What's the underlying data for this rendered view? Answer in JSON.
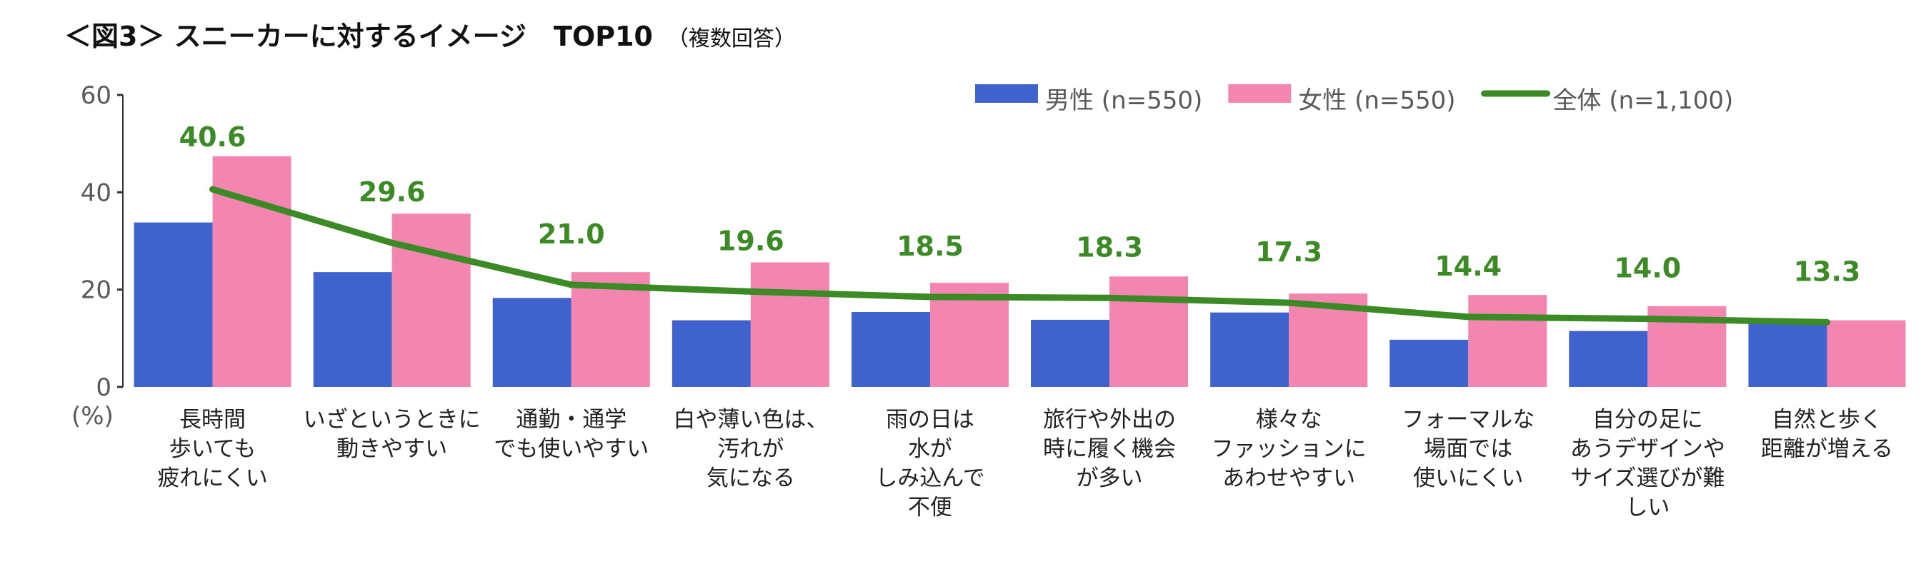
{
  "chart_data": {
    "type": "bar",
    "title": "＜図3＞ スニーカーに対するイメージ　TOP10",
    "subtitle": "（複数回答）",
    "ylabel": "(%)",
    "ylim": [
      0,
      60
    ],
    "yticks": [
      0,
      20,
      40,
      60
    ],
    "grid": false,
    "legend_position": "top-right",
    "categories": [
      [
        "長時間",
        "歩いても",
        "疲れにくい"
      ],
      [
        "いざというときに",
        "動きやすい"
      ],
      [
        "通勤・通学",
        "でも使いやすい"
      ],
      [
        "白や薄い色は、",
        "汚れが",
        "気になる"
      ],
      [
        "雨の日は",
        "水が",
        "しみ込んで",
        "不便"
      ],
      [
        "旅行や外出の",
        "時に履く機会",
        "が多い"
      ],
      [
        "様々な",
        "ファッションに",
        "あわせやすい"
      ],
      [
        "フォーマルな",
        "場面では",
        "使いにくい"
      ],
      [
        "自分の足に",
        "あうデザインや",
        "サイズ選びが難",
        "しい"
      ],
      [
        "自然と歩く",
        "距離が増える"
      ]
    ],
    "series": [
      {
        "name": "男性 (n=550)",
        "type": "bar",
        "color": "#4062cc",
        "values": [
          33.8,
          23.6,
          18.3,
          13.7,
          15.4,
          13.8,
          15.3,
          9.7,
          11.5,
          13.0
        ]
      },
      {
        "name": "女性 (n=550)",
        "type": "bar",
        "color": "#f286b0",
        "values": [
          47.4,
          35.6,
          23.6,
          25.6,
          21.4,
          22.7,
          19.2,
          18.9,
          16.6,
          13.7
        ]
      },
      {
        "name": "全体 (n=1,100)",
        "type": "line",
        "color": "#3c8a26",
        "values": [
          40.6,
          29.6,
          21.0,
          19.6,
          18.5,
          18.3,
          17.3,
          14.4,
          14.0,
          13.3
        ],
        "data_labels": [
          "40.6",
          "29.6",
          "21.0",
          "19.6",
          "18.5",
          "18.3",
          "17.3",
          "14.4",
          "14.0",
          "13.3"
        ]
      }
    ]
  }
}
